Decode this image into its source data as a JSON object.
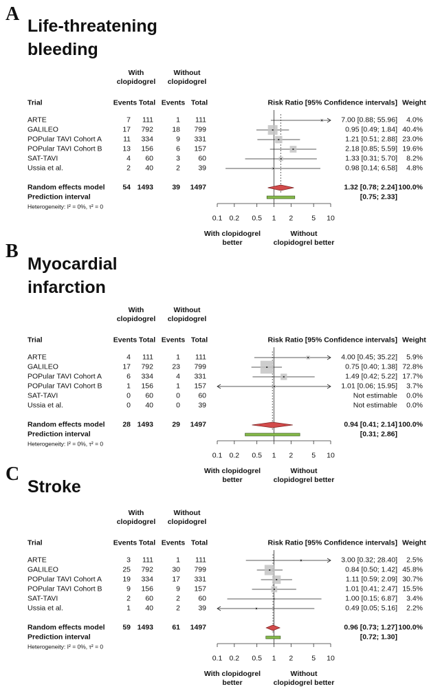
{
  "chart_data": [
    {
      "type": "forest",
      "label": "A",
      "title": "Life-threatening bleeding",
      "columns": {
        "with": "With clopidogrel",
        "without": "Without clopidogrel",
        "trial": "Trial",
        "events": "Events",
        "total": "Total",
        "rr": "Risk Ratio [95% Confidence intervals]",
        "weight": "Weight"
      },
      "trials": [
        "ARTE",
        "GALILEO",
        "POPular TAVI Cohort A",
        "POPular TAVI Cohort B",
        "SAT-TAVI",
        "Ussia et al."
      ],
      "events_with": [
        7,
        17,
        11,
        13,
        4,
        2
      ],
      "total_with": [
        111,
        792,
        334,
        156,
        60,
        40
      ],
      "events_without": [
        1,
        18,
        9,
        6,
        3,
        2
      ],
      "total_without": [
        111,
        799,
        331,
        157,
        60,
        39
      ],
      "rr": [
        7.0,
        0.95,
        1.21,
        2.18,
        1.33,
        0.98
      ],
      "ci_low": [
        0.88,
        0.49,
        0.51,
        0.85,
        0.31,
        0.14
      ],
      "ci_high": [
        55.96,
        1.84,
        2.88,
        5.59,
        5.7,
        6.58
      ],
      "ci_labels": [
        "7.00 [0.88; 55.96]",
        "0.95 [0.49; 1.84]",
        "1.21 [0.51; 2.88]",
        "2.18 [0.85; 5.59]",
        "1.33 [0.31; 5.70]",
        "0.98 [0.14; 6.58]"
      ],
      "weights": [
        4.0,
        40.4,
        23.0,
        19.6,
        8.2,
        4.8
      ],
      "weight_labels": [
        "4.0%",
        "40.4%",
        "23.0%",
        "19.6%",
        "8.2%",
        "4.8%"
      ],
      "summary": {
        "name": "Random effects model",
        "events_with": 54,
        "total_with": 1493,
        "events_without": 39,
        "total_without": 1497,
        "rr": 1.32,
        "ci_low": 0.78,
        "ci_high": 2.24,
        "ci_label": "1.32 [0.78; 2.24]",
        "weight": 100,
        "weight_label": "100.0%"
      },
      "prediction": {
        "name": "Prediction interval",
        "ci_low": 0.75,
        "ci_high": 2.33,
        "ci_label": "[0.75; 2.33]"
      },
      "heterogeneity": "Heterogeneity: I² = 0%, τ² = 0",
      "xscale": "log",
      "xlim": [
        0.1,
        10
      ],
      "xticks": [
        0.1,
        0.2,
        0.5,
        1,
        2,
        5,
        10
      ],
      "xlabel_left": "With clopidogrel better",
      "xlabel_right": "Without clopidogrel better",
      "colors": {
        "box": "#c4c4c4",
        "diamond": "#d24b4b",
        "prediction": "#86b94a"
      }
    },
    {
      "type": "forest",
      "label": "B",
      "title": "Myocardial infarction",
      "columns": {
        "with": "With clopidogrel",
        "without": "Without clopidogrel",
        "trial": "Trial",
        "events": "Events",
        "total": "Total",
        "rr": "Risk Ratio [95% Confidence intervals]",
        "weight": "Weight"
      },
      "trials": [
        "ARTE",
        "GALILEO",
        "POPular TAVI Cohort A",
        "POPular TAVI Cohort B",
        "SAT-TAVI",
        "Ussia et al."
      ],
      "events_with": [
        4,
        17,
        6,
        1,
        0,
        0
      ],
      "total_with": [
        111,
        792,
        334,
        156,
        60,
        40
      ],
      "events_without": [
        1,
        23,
        4,
        1,
        0,
        0
      ],
      "total_without": [
        111,
        799,
        331,
        157,
        60,
        39
      ],
      "rr": [
        4.0,
        0.75,
        1.49,
        1.01,
        null,
        null
      ],
      "ci_low": [
        0.45,
        0.4,
        0.42,
        0.06,
        null,
        null
      ],
      "ci_high": [
        35.22,
        1.38,
        5.22,
        15.95,
        null,
        null
      ],
      "ci_labels": [
        "4.00 [0.45; 35.22]",
        "0.75 [0.40; 1.38]",
        "1.49 [0.42; 5.22]",
        "1.01 [0.06; 15.95]",
        "Not estimable",
        "Not estimable"
      ],
      "weights": [
        5.9,
        72.8,
        17.7,
        3.7,
        0,
        0
      ],
      "weight_labels": [
        "5.9%",
        "72.8%",
        "17.7%",
        "3.7%",
        "0.0%",
        "0.0%"
      ],
      "summary": {
        "name": "Random effects model",
        "events_with": 28,
        "total_with": 1493,
        "events_without": 29,
        "total_without": 1497,
        "rr": 0.94,
        "ci_low": 0.41,
        "ci_high": 2.14,
        "ci_label": "0.94 [0.41; 2.14]",
        "weight": 100,
        "weight_label": "100.0%"
      },
      "prediction": {
        "name": "Prediction interval",
        "ci_low": 0.31,
        "ci_high": 2.86,
        "ci_label": "[0.31; 2.86]"
      },
      "heterogeneity": "Heterogeneity: I² = 0%, τ² = 0",
      "xscale": "log",
      "xlim": [
        0.1,
        10
      ],
      "xticks": [
        0.1,
        0.2,
        0.5,
        1,
        2,
        5,
        10
      ],
      "xlabel_left": "With clopidogrel better",
      "xlabel_right": "Without clopidogrel better",
      "colors": {
        "box": "#c4c4c4",
        "diamond": "#d24b4b",
        "prediction": "#86b94a"
      }
    },
    {
      "type": "forest",
      "label": "C",
      "title": "Stroke",
      "columns": {
        "with": "With clopidogrel",
        "without": "Without clopidogrel",
        "trial": "Trial",
        "events": "Events",
        "total": "Total",
        "rr": "Risk Ratio [95% Confidence intervals]",
        "weight": "Weight"
      },
      "trials": [
        "ARTE",
        "GALILEO",
        "POPular TAVI Cohort A",
        "POPular TAVI Cohort B",
        "SAT-TAVI",
        "Ussia et al."
      ],
      "events_with": [
        3,
        25,
        19,
        9,
        2,
        1
      ],
      "total_with": [
        111,
        792,
        334,
        156,
        60,
        40
      ],
      "events_without": [
        1,
        30,
        17,
        9,
        2,
        2
      ],
      "total_without": [
        111,
        799,
        331,
        157,
        60,
        39
      ],
      "rr": [
        3.0,
        0.84,
        1.11,
        1.01,
        1.0,
        0.49
      ],
      "ci_low": [
        0.32,
        0.5,
        0.59,
        0.41,
        0.15,
        0.05
      ],
      "ci_high": [
        28.4,
        1.42,
        2.09,
        2.47,
        6.87,
        5.16
      ],
      "ci_labels": [
        "3.00 [0.32; 28.40]",
        "0.84 [0.50; 1.42]",
        "1.11 [0.59; 2.09]",
        "1.01 [0.41; 2.47]",
        "1.00 [0.15; 6.87]",
        "0.49 [0.05; 5.16]"
      ],
      "weights": [
        2.5,
        45.8,
        30.7,
        15.5,
        3.4,
        2.2
      ],
      "weight_labels": [
        "2.5%",
        "45.8%",
        "30.7%",
        "15.5%",
        "3.4%",
        "2.2%"
      ],
      "summary": {
        "name": "Random effects model",
        "events_with": 59,
        "total_with": 1493,
        "events_without": 61,
        "total_without": 1497,
        "rr": 0.96,
        "ci_low": 0.73,
        "ci_high": 1.27,
        "ci_label": "0.96 [0.73; 1.27]",
        "weight": 100,
        "weight_label": "100.0%"
      },
      "prediction": {
        "name": "Prediction interval",
        "ci_low": 0.72,
        "ci_high": 1.3,
        "ci_label": "[0.72; 1.30]"
      },
      "heterogeneity": "Heterogeneity: I² = 0%, τ² = 0",
      "xscale": "log",
      "xlim": [
        0.1,
        10
      ],
      "xticks": [
        0.1,
        0.2,
        0.5,
        1,
        2,
        5,
        10
      ],
      "xlabel_left": "With clopidogrel better",
      "xlabel_right": "Without clopidogrel better",
      "colors": {
        "box": "#c4c4c4",
        "diamond": "#d24b4b",
        "prediction": "#86b94a"
      }
    }
  ]
}
